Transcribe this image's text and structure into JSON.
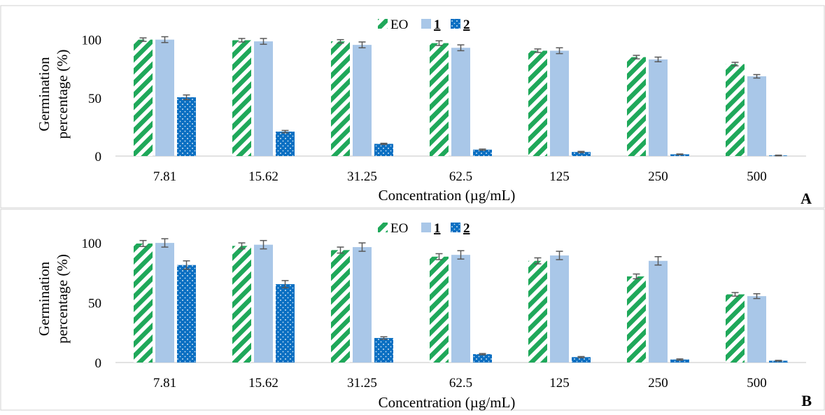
{
  "colors": {
    "EO": "#1fa85a",
    "1": "#a9c7e8",
    "2": "#0b6fc2",
    "axis": "#d9d9d9",
    "error_bar": "#595959",
    "panel_border": "#d0d0d0"
  },
  "chart_data": [
    {
      "type": "bar",
      "panel_label": "A",
      "categories": [
        "7.81",
        "15.62",
        "31.25",
        "62.5",
        "125",
        "250",
        "500"
      ],
      "series": [
        {
          "name": "EO",
          "values": [
            100,
            99.5,
            98.5,
            97,
            90.5,
            85,
            79
          ],
          "errors": [
            1.5,
            1.5,
            1.5,
            2,
            1.5,
            1.5,
            1.5
          ]
        },
        {
          "name": "1",
          "values": [
            100,
            98.5,
            95.5,
            93,
            90.5,
            83,
            68.5
          ],
          "errors": [
            2.5,
            2.5,
            2.5,
            2.5,
            2.5,
            2,
            1.5
          ]
        },
        {
          "name": "2",
          "values": [
            50.5,
            21,
            10.5,
            5.5,
            3.5,
            1.5,
            0.5
          ],
          "errors": [
            2,
            1,
            0.5,
            0.5,
            0.5,
            0.3,
            0.3
          ]
        }
      ],
      "xlabel": "Concentration (µg/mL)",
      "ylabel": "Germination percentage (%)",
      "ylabel_lines": [
        "Germination",
        "percentage (%)"
      ],
      "yticks": [
        "0",
        "50",
        "100"
      ],
      "ylim": [
        0,
        110
      ],
      "legend": "top-center",
      "grid": false
    },
    {
      "type": "bar",
      "panel_label": "B",
      "categories": [
        "7.81",
        "15.62",
        "31.25",
        "62.5",
        "125",
        "250",
        "500"
      ],
      "series": [
        {
          "name": "EO",
          "values": [
            99.5,
            97.5,
            94,
            88.5,
            85,
            72,
            57
          ],
          "errors": [
            2.5,
            2.5,
            2.5,
            2.5,
            2.5,
            2,
            1.5
          ]
        },
        {
          "name": "1",
          "values": [
            100,
            98.5,
            96.5,
            90,
            89.5,
            85,
            55.5
          ],
          "errors": [
            3.5,
            3.5,
            3.5,
            3.5,
            3.5,
            3.5,
            2
          ]
        },
        {
          "name": "2",
          "values": [
            81.5,
            65.5,
            20.5,
            7,
            4.5,
            2.5,
            1.5
          ],
          "errors": [
            3.5,
            3,
            1,
            0.5,
            0.5,
            0.5,
            0.3
          ]
        }
      ],
      "xlabel": "Concentration (µg/mL)",
      "ylabel": "Germination percentage (%)",
      "ylabel_lines": [
        "Germination",
        "percentage (%)"
      ],
      "yticks": [
        "0",
        "50",
        "100"
      ],
      "ylim": [
        0,
        110
      ],
      "legend": "top-center",
      "grid": false
    }
  ]
}
